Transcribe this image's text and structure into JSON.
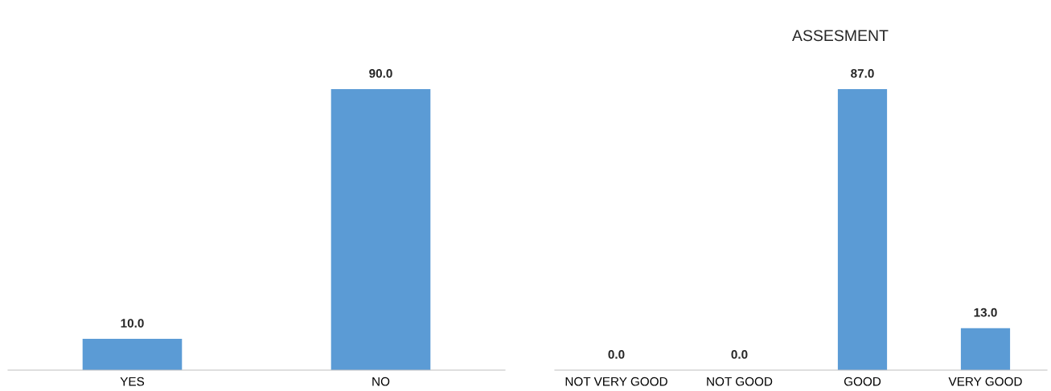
{
  "chart_data": [
    {
      "type": "bar",
      "categories": [
        "YES",
        "NO"
      ],
      "values": [
        10.0,
        90.0
      ],
      "color": "#5b9bd5",
      "value_labels": [
        "10.0",
        "90.0"
      ],
      "tick_labels": "x",
      "grid": false,
      "legend": false
    },
    {
      "type": "bar",
      "title": "ASSESMENT",
      "categories": [
        "NOT VERY GOOD",
        "NOT GOOD",
        "GOOD",
        "VERY GOOD"
      ],
      "values": [
        0.0,
        0.0,
        87.0,
        13.0
      ],
      "color": "#5b9bd5",
      "value_labels": [
        "0.0",
        "0.0",
        "87.0",
        "13.0"
      ],
      "tick_labels": "x",
      "grid": false,
      "legend": false
    }
  ]
}
